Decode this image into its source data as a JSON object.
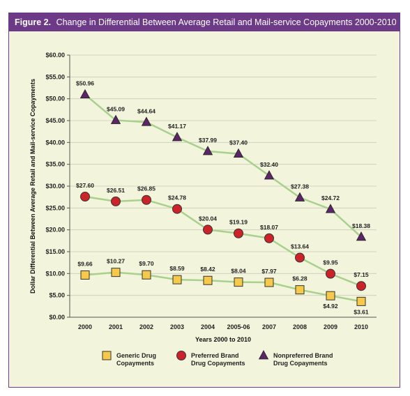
{
  "figure": {
    "label": "Figure 2.",
    "title": "Change in Differential Between Average Retail and Mail-service Copayments 2000-2010"
  },
  "colors": {
    "banner": "#6d3a87",
    "background": "#f3f4dc",
    "connector": "#a9d18e",
    "generic": "#f6c94a",
    "preferred": "#cc2229",
    "nonpreferred": "#5c2567"
  },
  "chart_data": {
    "type": "line",
    "title": "Change in Differential Between Average Retail and Mail-service Copayments 2000-2010",
    "xlabel": "Years 2000 to 2010",
    "ylabel": "Dollar Differential Between Average Retail and Mail-service Copayments",
    "categories": [
      "2000",
      "2001",
      "2002",
      "2003",
      "2004",
      "2005-06",
      "2007",
      "2008",
      "2009",
      "2010"
    ],
    "ylim": [
      0,
      60
    ],
    "yticks": [
      0,
      5,
      10,
      15,
      20,
      25,
      30,
      35,
      40,
      45,
      50,
      55,
      60
    ],
    "ytick_labels": [
      "$0.00",
      "$5.00",
      "$10.00",
      "$15.00",
      "$20.00",
      "$25.00",
      "$30.00",
      "$35.00",
      "$40.00",
      "$45.00",
      "$50.00",
      "$55.00",
      "$60.00"
    ],
    "grid": true,
    "legend_position": "bottom",
    "series": [
      {
        "key": "generic",
        "name": "Generic Drug Copayments",
        "legend_lines": [
          "Generic Drug",
          "Copayments"
        ],
        "marker": "square",
        "values": [
          9.66,
          10.27,
          9.7,
          8.59,
          8.42,
          8.04,
          7.97,
          6.28,
          4.92,
          3.61
        ],
        "labels": [
          "$9.66",
          "$10.27",
          "$9.70",
          "$8.59",
          "$8.42",
          "$8.04",
          "$7.97",
          "$6.28",
          "$4.92",
          "$3.61"
        ]
      },
      {
        "key": "preferred",
        "name": "Preferred Brand Drug Copayments",
        "legend_lines": [
          "Preferred Brand",
          "Drug Copayments"
        ],
        "marker": "circle",
        "values": [
          27.6,
          26.51,
          26.85,
          24.78,
          20.04,
          19.19,
          18.07,
          13.64,
          9.95,
          7.15
        ],
        "labels": [
          "$27.60",
          "$26.51",
          "$26.85",
          "$24.78",
          "$20.04",
          "$19.19",
          "$18.07",
          "$13.64",
          "$9.95",
          "$7.15"
        ]
      },
      {
        "key": "nonpreferred",
        "name": "Nonpreferred Brand Drug Copayments",
        "legend_lines": [
          "Nonpreferred Brand",
          "Drug Copayments"
        ],
        "marker": "triangle",
        "values": [
          50.96,
          45.09,
          44.64,
          41.17,
          37.99,
          37.4,
          32.4,
          27.38,
          24.72,
          18.38
        ],
        "labels": [
          "$50.96",
          "$45.09",
          "$44.64",
          "$41.17",
          "$37.99",
          "$37.40",
          "$32.40",
          "$27.38",
          "$24.72",
          "$18.38"
        ]
      }
    ]
  }
}
